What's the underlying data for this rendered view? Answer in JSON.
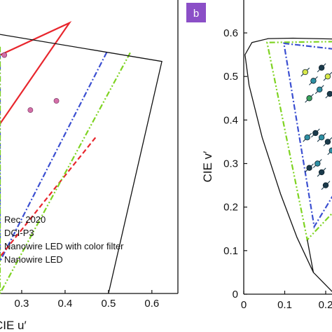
{
  "colors": {
    "rec2020": "#e8262d",
    "dcip3": "#3b4fd1",
    "nanowire_filter": "#e8262d",
    "nanowire": "#7ed321",
    "locus": "#111111",
    "panel_label_bg": "#8b4fc7",
    "points_teal": "#2e8fa3",
    "points_dark": "#1b3a4b",
    "points_yellow": "#d8e84a",
    "points_green": "#3aa35a",
    "points_pink": "#d46fa8"
  },
  "panel_b": {
    "label": "b"
  },
  "chart_data": [
    {
      "panel": "a",
      "type": "line",
      "xlabel": "CIE u′",
      "xlabel_visible": "CIE u′",
      "x_ticks": [
        "0.3",
        "0.4",
        "0.5",
        "0.6"
      ],
      "x_tick_values": [
        0.3,
        0.4,
        0.5,
        0.6
      ],
      "xlim": [
        0.25,
        0.66
      ],
      "ylim": [
        0.0,
        0.64
      ],
      "legend": [
        "Rec. 2020",
        "DCI-P3",
        "Nanowire LED with color filter",
        "Nanowire LED"
      ],
      "series": [
        {
          "name": "Rec. 2020",
          "style": "solid",
          "points": [
            [
              0.25,
              0.37
            ],
            [
              0.41,
              0.59
            ],
            [
              0.25,
              0.52
            ]
          ]
        },
        {
          "name": "DCI-P3",
          "style": "dashdot",
          "points": [
            [
              0.496,
              0.526
            ],
            [
              0.25,
              0.07
            ],
            [
              0.25,
              0.53
            ]
          ]
        },
        {
          "name": "Nanowire LED with color filter",
          "style": "dashed",
          "points": [
            [
              0.47,
              0.34
            ],
            [
              0.25,
              0.08
            ]
          ]
        },
        {
          "name": "Nanowire LED",
          "style": "dashdotdot",
          "points": [
            [
              0.55,
              0.525
            ],
            [
              0.25,
              0.0
            ],
            [
              0.25,
              0.54
            ]
          ]
        },
        {
          "name": "",
          "style": "solid-black",
          "points": [
            [
              0.25,
              0.565
            ],
            [
              0.623,
              0.506
            ],
            [
              0.623,
              0.506
            ],
            [
              0.5,
              0.0
            ]
          ]
        }
      ],
      "scatter": [
        {
          "x": 0.26,
          "y": 0.52,
          "color": "#d46fa8"
        },
        {
          "x": 0.32,
          "y": 0.4,
          "color": "#d46fa8"
        },
        {
          "x": 0.38,
          "y": 0.42,
          "color": "#d46fa8"
        }
      ]
    },
    {
      "panel": "b",
      "type": "line",
      "xlabel": "",
      "ylabel": "CIE v′",
      "x_ticks": [
        "0",
        "0.1",
        "0.2"
      ],
      "x_tick_values": [
        0,
        0.1,
        0.2
      ],
      "y_ticks": [
        "0",
        "0.1",
        "0.2",
        "0.3",
        "0.4",
        "0.5",
        "0.6"
      ],
      "y_tick_values": [
        0,
        0.1,
        0.2,
        0.3,
        0.4,
        0.5,
        0.6
      ],
      "xlim": [
        0,
        0.22
      ],
      "ylim": [
        0,
        0.64
      ],
      "series": [
        {
          "name": "",
          "style": "solid-black",
          "points": [
            [
              0.222,
              0.0
            ],
            [
              0.17,
              0.05
            ],
            [
              0.13,
              0.13
            ],
            [
              0.09,
              0.23
            ],
            [
              0.045,
              0.36
            ],
            [
              0.013,
              0.48
            ],
            [
              0.003,
              0.55
            ],
            [
              0.02,
              0.578
            ],
            [
              0.06,
              0.587
            ],
            [
              0.12,
              0.588
            ],
            [
              0.22,
              0.586
            ]
          ]
        },
        {
          "name": "Nanowire LED",
          "style": "dashdotdot",
          "points": [
            [
              0.22,
              0.58
            ],
            [
              0.057,
              0.578
            ],
            [
              0.155,
              0.125
            ],
            [
              0.22,
              0.19
            ]
          ]
        },
        {
          "name": "DCI-P3",
          "style": "dashdot",
          "points": [
            [
              0.22,
              0.563
            ],
            [
              0.098,
              0.576
            ],
            [
              0.172,
              0.155
            ],
            [
              0.22,
              0.23
            ]
          ]
        },
        {
          "name": "",
          "style": "solid-black",
          "points": [
            [
              0.155,
              0.125
            ],
            [
              0.17,
              0.05
            ]
          ]
        }
      ],
      "scatter": [
        {
          "x": 0.15,
          "y": 0.51,
          "color": "#d8e84a"
        },
        {
          "x": 0.17,
          "y": 0.49,
          "color": "#2e8fa3"
        },
        {
          "x": 0.19,
          "y": 0.52,
          "color": "#1b3a4b"
        },
        {
          "x": 0.205,
          "y": 0.5,
          "color": "#d8e84a"
        },
        {
          "x": 0.16,
          "y": 0.45,
          "color": "#3aa35a"
        },
        {
          "x": 0.185,
          "y": 0.47,
          "color": "#2e8fa3"
        },
        {
          "x": 0.21,
          "y": 0.46,
          "color": "#1b3a4b"
        },
        {
          "x": 0.155,
          "y": 0.36,
          "color": "#2e8fa3"
        },
        {
          "x": 0.175,
          "y": 0.37,
          "color": "#1b3a4b"
        },
        {
          "x": 0.19,
          "y": 0.36,
          "color": "#2e8fa3"
        },
        {
          "x": 0.205,
          "y": 0.35,
          "color": "#1b3a4b"
        },
        {
          "x": 0.16,
          "y": 0.29,
          "color": "#1b3a4b"
        },
        {
          "x": 0.18,
          "y": 0.3,
          "color": "#2e8fa3"
        },
        {
          "x": 0.2,
          "y": 0.25,
          "color": "#1b3a4b"
        },
        {
          "x": 0.215,
          "y": 0.33,
          "color": "#2e8fa3"
        },
        {
          "x": 0.19,
          "y": 0.28,
          "color": "#1b3a4b"
        }
      ]
    }
  ]
}
